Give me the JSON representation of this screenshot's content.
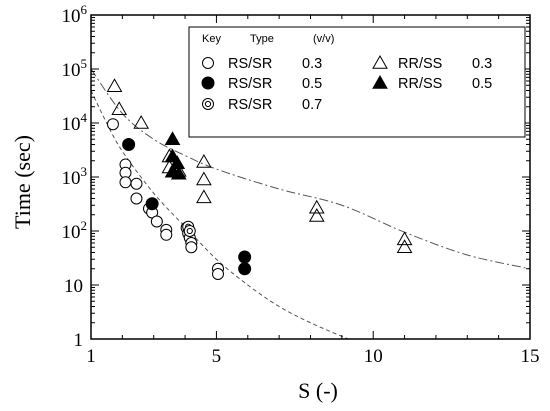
{
  "chart_data": {
    "type": "scatter",
    "title": "",
    "xlabel": "S (-)",
    "ylabel": "Time (sec)",
    "xlim": [
      1,
      15
    ],
    "ylim": [
      1,
      1000000
    ],
    "yscale": "log",
    "x_ticks": [
      1,
      5,
      10,
      15
    ],
    "y_ticks": [
      {
        "value": 1,
        "label": "1"
      },
      {
        "value": 10,
        "label": "10"
      },
      {
        "value": 100,
        "label": "10",
        "exp": "2"
      },
      {
        "value": 1000,
        "label": "10",
        "exp": "3"
      },
      {
        "value": 10000,
        "label": "10",
        "exp": "4"
      },
      {
        "value": 100000,
        "label": "10",
        "exp": "5"
      },
      {
        "value": 1000000,
        "label": "10",
        "exp": "6"
      }
    ],
    "legend": {
      "position": "top-right",
      "headers": {
        "key": "Key",
        "type": "Type",
        "ratio": "(v/v)"
      }
    },
    "series": [
      {
        "type": "RS/SR",
        "ratio": "0.3",
        "marker": "circle-open",
        "points": [
          [
            1.7,
            9500
          ],
          [
            2.1,
            1700
          ],
          [
            2.1,
            1200
          ],
          [
            2.1,
            800
          ],
          [
            2.45,
            750
          ],
          [
            2.45,
            400
          ],
          [
            2.85,
            260
          ],
          [
            2.95,
            220
          ],
          [
            3.1,
            150
          ],
          [
            3.4,
            105
          ],
          [
            3.4,
            85
          ],
          [
            4.05,
            115
          ],
          [
            4.1,
            90
          ],
          [
            4.15,
            75
          ],
          [
            4.2,
            60
          ],
          [
            4.2,
            50
          ],
          [
            5.05,
            20
          ],
          [
            5.05,
            16
          ]
        ]
      },
      {
        "type": "RS/SR",
        "ratio": "0.5",
        "marker": "circle-filled",
        "points": [
          [
            2.2,
            4000
          ],
          [
            2.95,
            320
          ],
          [
            5.9,
            33
          ],
          [
            5.9,
            20
          ]
        ]
      },
      {
        "type": "RS/SR",
        "ratio": "0.7",
        "marker": "circle-double",
        "points": [
          [
            4.1,
            120
          ],
          [
            4.15,
            100
          ]
        ]
      },
      {
        "type": "RR/SS",
        "ratio": "0.3",
        "marker": "triangle-open",
        "points": [
          [
            1.75,
            48000
          ],
          [
            1.9,
            18000
          ],
          [
            2.6,
            10000
          ],
          [
            3.5,
            2400
          ],
          [
            3.5,
            1500
          ],
          [
            3.8,
            1300
          ],
          [
            4.6,
            1900
          ],
          [
            4.6,
            900
          ],
          [
            4.6,
            420
          ],
          [
            8.2,
            270
          ],
          [
            8.2,
            190
          ],
          [
            11.0,
            70
          ],
          [
            11.0,
            50
          ]
        ]
      },
      {
        "type": "RR/SS",
        "ratio": "0.5",
        "marker": "triangle-filled",
        "points": [
          [
            3.6,
            5000
          ],
          [
            3.6,
            2400
          ],
          [
            3.75,
            1800
          ],
          [
            3.6,
            1250
          ],
          [
            3.8,
            1150
          ]
        ]
      }
    ],
    "trend_lines": [
      {
        "style": "dash-dot",
        "points": [
          [
            1,
            100000
          ],
          [
            2,
            15000
          ],
          [
            3,
            5000
          ],
          [
            4,
            2500
          ],
          [
            5,
            1400
          ],
          [
            7,
            600
          ],
          [
            9,
            300
          ],
          [
            11,
            95
          ],
          [
            13,
            36
          ],
          [
            15,
            20
          ]
        ]
      },
      {
        "style": "dashed",
        "points": [
          [
            1,
            40000
          ],
          [
            1.5,
            10000
          ],
          [
            2,
            3000
          ],
          [
            3,
            500
          ],
          [
            4,
            120
          ],
          [
            5,
            30
          ],
          [
            6,
            10
          ],
          [
            7,
            4
          ],
          [
            8,
            2
          ],
          [
            9.2,
            1
          ]
        ]
      }
    ]
  }
}
